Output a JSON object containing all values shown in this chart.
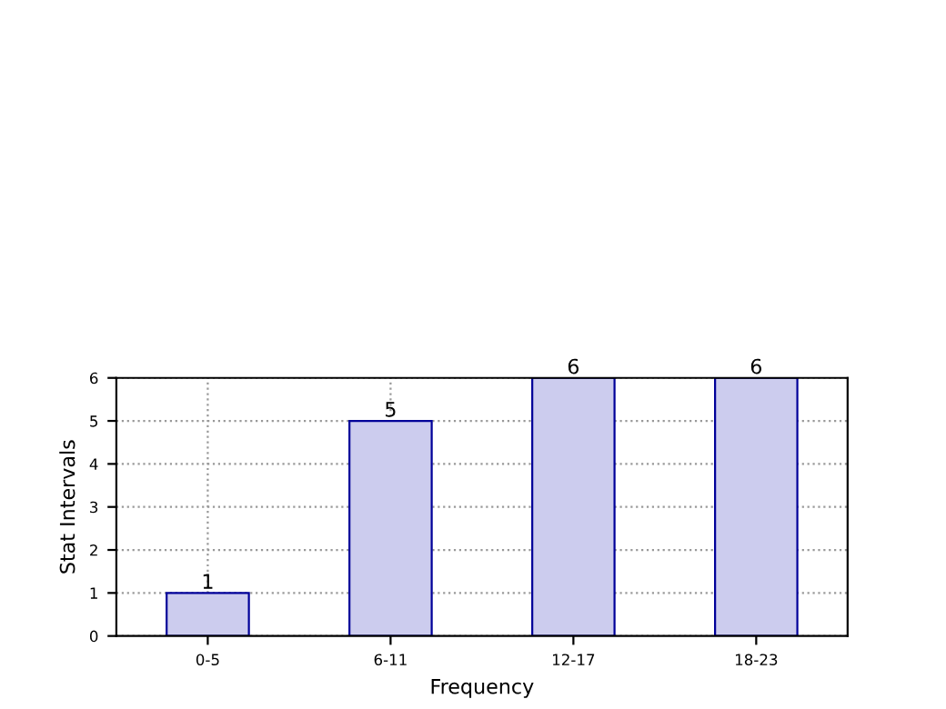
{
  "chart_data": {
    "type": "bar",
    "xlabel": "Frequency",
    "ylabel": "Stat Intervals",
    "categories": [
      "0-5",
      "6-11",
      "12-17",
      "18-23"
    ],
    "values": [
      1,
      5,
      6,
      6
    ],
    "color": "#ccccee",
    "ylim": [
      0,
      6
    ],
    "yticks": [
      0,
      1,
      2,
      3,
      4,
      5,
      6
    ],
    "grid": true,
    "line_style": "dotted",
    "data_labels": true
  }
}
